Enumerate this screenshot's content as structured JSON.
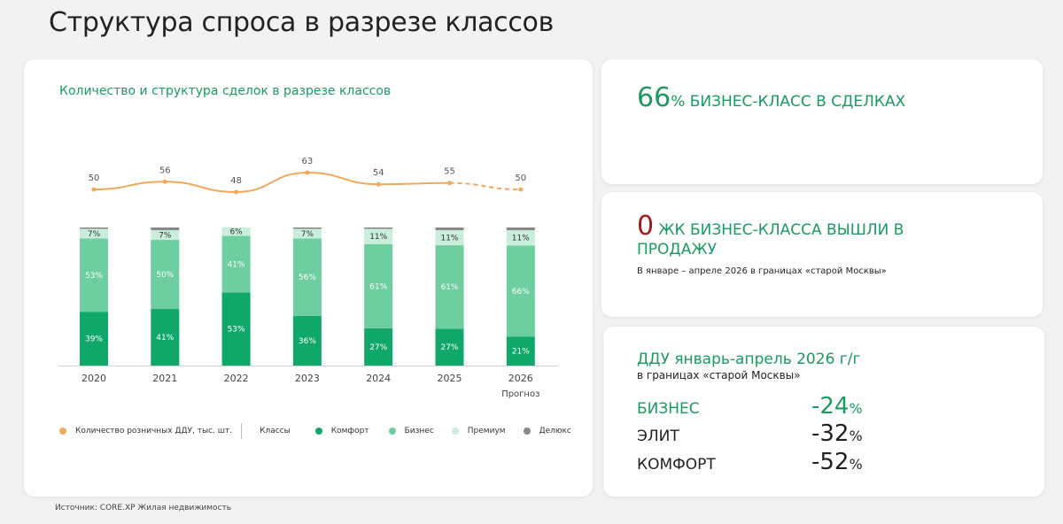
{
  "page": {
    "title": "Структура спроса в разрезе классов",
    "source": "Источник: CORE.XP Жилая недвижимость"
  },
  "chart_data": {
    "type": "bar",
    "title": "Количество и структура сделок в разрезе классов",
    "categories": [
      "2020",
      "2021",
      "2022",
      "2023",
      "2024",
      "2025",
      "2026"
    ],
    "category_note": "Прогноз",
    "stacked": true,
    "series": [
      {
        "name": "Комфорт",
        "color": "#0fa86a",
        "values": [
          39,
          41,
          53,
          36,
          27,
          27,
          21
        ],
        "labels": [
          "39%",
          "41%",
          "53%",
          "36%",
          "27%",
          "27%",
          "21%"
        ]
      },
      {
        "name": "Бизнес",
        "color": "#6dcf9f",
        "values": [
          53,
          50,
          41,
          56,
          61,
          61,
          66
        ],
        "labels": [
          "53%",
          "50%",
          "41%",
          "56%",
          "61%",
          "61%",
          "66%"
        ]
      },
      {
        "name": "Премиум",
        "color": "#c9eedb",
        "values": [
          7,
          7,
          6,
          7,
          11,
          11,
          11
        ],
        "labels": [
          "7%",
          "7%",
          "6%",
          "7%",
          "11%",
          "11%",
          "11%"
        ]
      },
      {
        "name": "Делюкс",
        "color": "#888888",
        "values": [
          1,
          2,
          0,
          1,
          1,
          2,
          2
        ]
      }
    ],
    "line": {
      "name": "Количество розничных ДДУ, тыс. шт.",
      "color": "#f0a85a",
      "values": [
        50,
        56,
        48,
        63,
        54,
        55,
        50
      ],
      "labels": [
        "50",
        "56",
        "48",
        "63",
        "54",
        "55",
        "50"
      ],
      "dashed_from": "2025"
    },
    "legend": {
      "line_label": "Количество розничных ДДУ, тыс. шт.",
      "classes_label": "Классы",
      "items": [
        "Комфорт",
        "Бизнес",
        "Премиум",
        "Делюкс"
      ]
    },
    "legend_position": "bottom"
  },
  "card_a": {
    "number": "66",
    "text": "% БИЗНЕС-КЛАСС В СДЕЛКАХ"
  },
  "card_b": {
    "number": "0",
    "text": "ЖК БИЗНЕС-КЛАССА ВЫШЛИ В ПРОДАЖУ",
    "note": "В январе – апреле  2026 в границах «старой Москвы»"
  },
  "card_c": {
    "title": "ДДУ январь-апрель 2026 г/г",
    "subtitle": "в границах «старой Москвы»",
    "rows": [
      {
        "name": "БИЗНЕС",
        "value": "-24",
        "unit": "%",
        "color": "#1a9a63"
      },
      {
        "name": "ЭЛИТ",
        "value": "-32",
        "unit": "%",
        "color": "#222222"
      },
      {
        "name": "КОМФОРТ",
        "value": "-52",
        "unit": "%",
        "color": "#222222"
      }
    ]
  }
}
